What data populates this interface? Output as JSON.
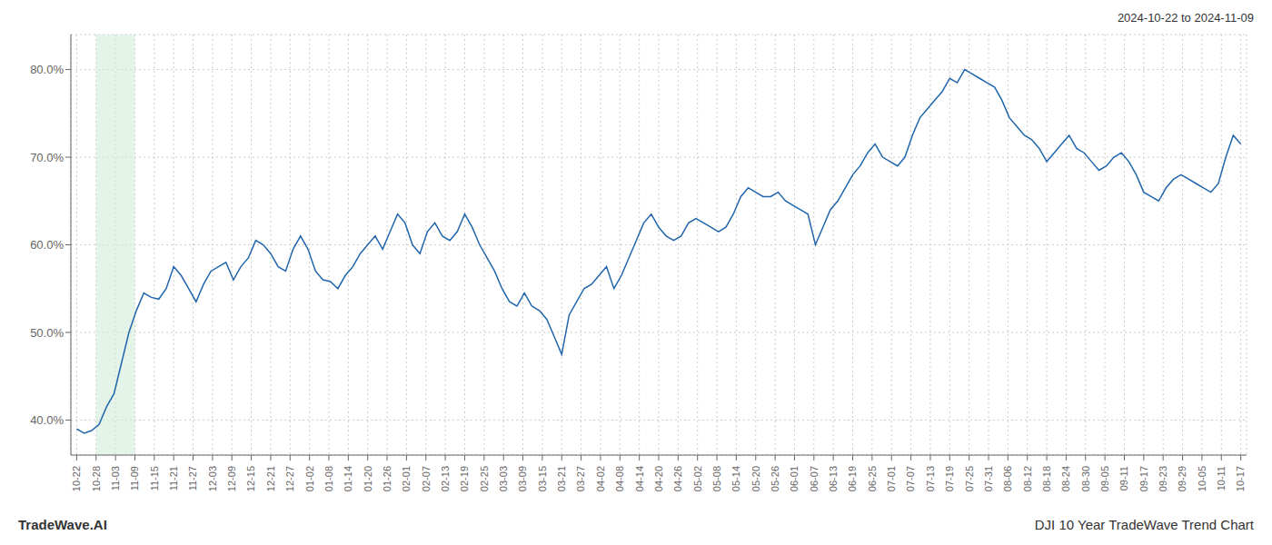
{
  "chart_data": {
    "type": "line",
    "title": "DJI 10 Year TradeWave Trend Chart",
    "subtitle": "2024-10-22 to 2024-11-09",
    "annotations": [
      "TradeWave.AI"
    ],
    "color": "#2166ac",
    "grid": true,
    "shade": {
      "range": [
        2.6,
        7.8
      ],
      "color": "#d4edda"
    },
    "xlim": [
      -0.78,
      156.78
    ],
    "xticks": [
      {
        "value": 0,
        "label": "10-22"
      },
      {
        "value": 2.6,
        "label": "10-28"
      },
      {
        "value": 5.2,
        "label": "11-03"
      },
      {
        "value": 7.8,
        "label": "11-09"
      },
      {
        "value": 10.4,
        "label": "11-15"
      },
      {
        "value": 13,
        "label": "11-21"
      },
      {
        "value": 15.6,
        "label": "11-27"
      },
      {
        "value": 18.2,
        "label": "12-03"
      },
      {
        "value": 20.8,
        "label": "12-09"
      },
      {
        "value": 23.4,
        "label": "12-15"
      },
      {
        "value": 26,
        "label": "12-21"
      },
      {
        "value": 28.6,
        "label": "12-27"
      },
      {
        "value": 31.2,
        "label": "01-02"
      },
      {
        "value": 33.8,
        "label": "01-08"
      },
      {
        "value": 36.4,
        "label": "01-14"
      },
      {
        "value": 39,
        "label": "01-20"
      },
      {
        "value": 41.6,
        "label": "01-26"
      },
      {
        "value": 44.2,
        "label": "02-01"
      },
      {
        "value": 46.8,
        "label": "02-07"
      },
      {
        "value": 49.4,
        "label": "02-13"
      },
      {
        "value": 52,
        "label": "02-19"
      },
      {
        "value": 54.6,
        "label": "02-25"
      },
      {
        "value": 57.2,
        "label": "03-03"
      },
      {
        "value": 59.8,
        "label": "03-09"
      },
      {
        "value": 62.4,
        "label": "03-15"
      },
      {
        "value": 65,
        "label": "03-21"
      },
      {
        "value": 67.6,
        "label": "03-27"
      },
      {
        "value": 70.2,
        "label": "04-02"
      },
      {
        "value": 72.8,
        "label": "04-08"
      },
      {
        "value": 75.4,
        "label": "04-14"
      },
      {
        "value": 78,
        "label": "04-20"
      },
      {
        "value": 80.6,
        "label": "04-26"
      },
      {
        "value": 83.2,
        "label": "05-02"
      },
      {
        "value": 85.8,
        "label": "05-08"
      },
      {
        "value": 88.4,
        "label": "05-14"
      },
      {
        "value": 91,
        "label": "05-20"
      },
      {
        "value": 93.6,
        "label": "05-26"
      },
      {
        "value": 96.2,
        "label": "06-01"
      },
      {
        "value": 98.8,
        "label": "06-07"
      },
      {
        "value": 101.4,
        "label": "06-13"
      },
      {
        "value": 104,
        "label": "06-19"
      },
      {
        "value": 106.6,
        "label": "06-25"
      },
      {
        "value": 109.2,
        "label": "07-01"
      },
      {
        "value": 111.8,
        "label": "07-07"
      },
      {
        "value": 114.4,
        "label": "07-13"
      },
      {
        "value": 117,
        "label": "07-19"
      },
      {
        "value": 119.6,
        "label": "07-25"
      },
      {
        "value": 122.2,
        "label": "07-31"
      },
      {
        "value": 124.8,
        "label": "08-06"
      },
      {
        "value": 127.4,
        "label": "08-12"
      },
      {
        "value": 130,
        "label": "08-18"
      },
      {
        "value": 132.6,
        "label": "08-24"
      },
      {
        "value": 135.2,
        "label": "08-30"
      },
      {
        "value": 137.8,
        "label": "09-05"
      },
      {
        "value": 140.4,
        "label": "09-11"
      },
      {
        "value": 143,
        "label": "09-17"
      },
      {
        "value": 145.6,
        "label": "09-23"
      },
      {
        "value": 148.2,
        "label": "09-29"
      },
      {
        "value": 150.8,
        "label": "10-05"
      },
      {
        "value": 153.4,
        "label": "10-11"
      },
      {
        "value": 156,
        "label": "10-17"
      }
    ],
    "ylim": [
      36.0,
      84.0
    ],
    "yticks": [
      {
        "value": 40.0,
        "label": "40.0%"
      },
      {
        "value": 50.0,
        "label": "50.0%"
      },
      {
        "value": 60.0,
        "label": "60.0%"
      },
      {
        "value": 70.0,
        "label": "70.0%"
      },
      {
        "value": 80.0,
        "label": "80.0%"
      }
    ],
    "x": [
      0,
      1,
      2,
      3,
      4,
      5,
      6,
      7,
      8,
      9,
      10,
      11,
      12,
      13,
      14,
      15,
      16,
      17,
      18,
      19,
      20,
      21,
      22,
      23,
      24,
      25,
      26,
      27,
      28,
      29,
      30,
      31,
      32,
      33,
      34,
      35,
      36,
      37,
      38,
      39,
      40,
      41,
      42,
      43,
      44,
      45,
      46,
      47,
      48,
      49,
      50,
      51,
      52,
      53,
      54,
      55,
      56,
      57,
      58,
      59,
      60,
      61,
      62,
      63,
      64,
      65,
      66,
      67,
      68,
      69,
      70,
      71,
      72,
      73,
      74,
      75,
      76,
      77,
      78,
      79,
      80,
      81,
      82,
      83,
      84,
      85,
      86,
      87,
      88,
      89,
      90,
      91,
      92,
      93,
      94,
      95,
      96,
      97,
      98,
      99,
      100,
      101,
      102,
      103,
      104,
      105,
      106,
      107,
      108,
      109,
      110,
      111,
      112,
      113,
      114,
      115,
      116,
      117,
      118,
      119,
      120,
      121,
      122,
      123,
      124,
      125,
      126,
      127,
      128,
      129,
      130,
      131,
      132,
      133,
      134,
      135,
      136,
      137,
      138,
      139,
      140,
      141,
      142,
      143,
      144,
      145,
      146,
      147,
      148,
      149,
      150,
      151,
      152,
      153,
      154,
      155,
      156
    ],
    "values": [
      39.0,
      38.5,
      38.8,
      39.5,
      41.5,
      43.0,
      46.5,
      50.0,
      52.5,
      54.5,
      54.0,
      53.8,
      55.0,
      57.5,
      56.5,
      55.0,
      53.5,
      55.5,
      57.0,
      57.5,
      58.0,
      56.0,
      57.5,
      58.5,
      60.5,
      60.0,
      59.0,
      57.5,
      57.0,
      59.5,
      61.0,
      59.5,
      57.0,
      56.0,
      55.8,
      55.0,
      56.5,
      57.5,
      59.0,
      60.0,
      61.0,
      59.5,
      61.5,
      63.5,
      62.5,
      60.0,
      59.0,
      61.5,
      62.5,
      61.0,
      60.5,
      61.5,
      63.5,
      62.0,
      60.0,
      58.5,
      57.0,
      55.0,
      53.5,
      53.0,
      54.5,
      53.0,
      52.5,
      51.5,
      49.5,
      47.5,
      52.0,
      53.5,
      55.0,
      55.5,
      56.5,
      57.5,
      55.0,
      56.5,
      58.5,
      60.5,
      62.5,
      63.5,
      62.0,
      61.0,
      60.5,
      61.0,
      62.5,
      63.0,
      62.5,
      62.0,
      61.5,
      62.0,
      63.5,
      65.5,
      66.5,
      66.0,
      65.5,
      65.5,
      66.0,
      65.0,
      64.5,
      64.0,
      63.5,
      60.0,
      62.0,
      64.0,
      65.0,
      66.5,
      68.0,
      69.0,
      70.5,
      71.5,
      70.0,
      69.5,
      69.0,
      70.0,
      72.5,
      74.5,
      75.5,
      76.5,
      77.5,
      79.0,
      78.5,
      80.0,
      79.5,
      79.0,
      78.5,
      78.0,
      76.5,
      74.5,
      73.5,
      72.5,
      72.0,
      71.0,
      69.5,
      70.5,
      71.5,
      72.5,
      71.0,
      70.5,
      69.5,
      68.5,
      69.0,
      70.0,
      70.5,
      69.5,
      68.0,
      66.0,
      65.5,
      65.0,
      66.5,
      67.5,
      68.0,
      67.5,
      67.0,
      66.5,
      66.0,
      67.0,
      70.0,
      72.5,
      71.5
    ]
  }
}
